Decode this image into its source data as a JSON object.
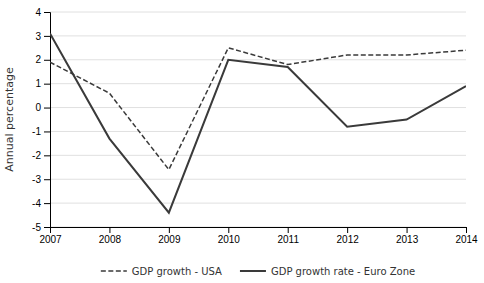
{
  "chart_data": {
    "type": "line",
    "x": [
      2007,
      2008,
      2009,
      2010,
      2011,
      2012,
      2013,
      2014
    ],
    "xlim": [
      2007,
      2014
    ],
    "xticks": [
      2007,
      2008,
      2009,
      2010,
      2011,
      2012,
      2013,
      2014
    ],
    "ylim": [
      -5,
      4
    ],
    "yticks": [
      -5,
      -4,
      -3,
      -2,
      -1,
      0,
      1,
      2,
      3,
      4
    ],
    "ylabel": "Annual percentage",
    "grid": true,
    "legend": "bottom",
    "series": [
      {
        "name": "GDP growth - USA",
        "color": "#3a3a3a",
        "line_style": "dashed",
        "values": [
          1.9,
          0.6,
          -2.6,
          2.5,
          1.8,
          2.2,
          2.2,
          2.4
        ]
      },
      {
        "name": "GDP growth rate - Euro Zone",
        "color": "#3a3a3a",
        "line_style": "solid",
        "values": [
          3.1,
          -1.3,
          -4.4,
          2.0,
          1.7,
          -0.8,
          -0.5,
          0.9
        ]
      }
    ]
  }
}
